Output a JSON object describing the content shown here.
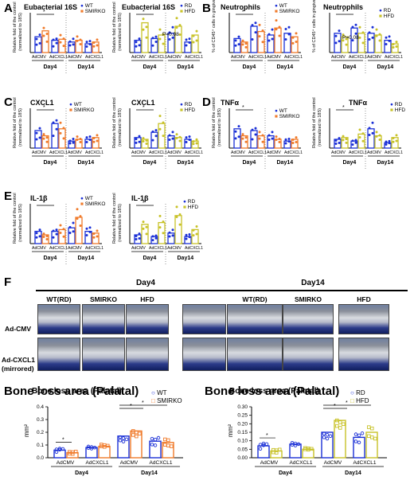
{
  "colors": {
    "wt": "#1a2fd6",
    "smirko": "#f07a2a",
    "rd": "#1a2fd6",
    "hfd": "#c8c228"
  },
  "labels": {
    "A": "A",
    "B": "B",
    "C": "C",
    "D": "D",
    "E": "E",
    "F": "F",
    "G": "Bone loss area (Palatal)",
    "H": "Bone loss area (Palatal)",
    "A_left": "Eubacterial 16S",
    "A_right": "Eubacterial 16S",
    "B_left": "Neutrophils",
    "B_right": "Neutrophils",
    "C_left": "CXCL1",
    "C_right": "CXCL1",
    "D_left": "TNFα",
    "D_right": "TNFα",
    "E_left": "IL-1β",
    "E_right": "IL-1β",
    "wt": "WT",
    "smirko": "SMIRKO",
    "rd": "RD",
    "hfd": "HFD",
    "ylabel_fold": "Relative fold of the control",
    "ylabel_fold2": "(normalized to 18S)",
    "ylabel_neut": "% of CD45⁺ cells in gingiva",
    "ylabel_bone": "mm²",
    "adcmv": "AdCMV",
    "adcxcl1": "AdCXCL1",
    "day4": "Day4",
    "day14": "Day14",
    "p008": "P=0.08"
  },
  "panelF": {
    "day4": "Day4",
    "day14": "Day14",
    "wtrd": "WT(RD)",
    "smirko": "SMIRKO",
    "hfd": "HFD",
    "wtrd2": "WT(RD)",
    "smirko2": "SMIRKO",
    "hfd2": "HFD",
    "row1": "Ad-CMV",
    "row2a": "Ad-CXCL1",
    "row2b": "(mirrored)"
  },
  "chart_data": [
    {
      "panel": "G",
      "type": "bar",
      "title": "Bone loss area (Palatal)",
      "ylabel": "mm²",
      "ylim": [
        0,
        0.4
      ],
      "yticks": [
        "0.0",
        "0.1",
        "0.2",
        "0.3",
        "0.4"
      ],
      "categories": [
        "AdCMV Day4",
        "AdCXCL1 Day4",
        "AdCMV Day14",
        "AdCXCL1 Day14"
      ],
      "series": [
        {
          "name": "WT",
          "values": [
            0.06,
            0.08,
            0.17,
            0.13
          ]
        },
        {
          "name": "SMIRKO",
          "values": [
            0.04,
            0.09,
            0.21,
            0.12
          ]
        }
      ]
    },
    {
      "panel": "H",
      "type": "bar",
      "title": "Bone loss area (Palatal)",
      "ylabel": "mm²",
      "ylim": [
        0,
        0.3
      ],
      "yticks": [
        "0.00",
        "0.05",
        "0.10",
        "0.15",
        "0.20",
        "0.25",
        "0.30"
      ],
      "categories": [
        "AdCMV Day4",
        "AdCXCL1 Day4",
        "AdCMV Day14",
        "AdCXCL1 Day14"
      ],
      "series": [
        {
          "name": "RD",
          "values": [
            0.07,
            0.08,
            0.15,
            0.12
          ]
        },
        {
          "name": "HFD",
          "values": [
            0.04,
            0.05,
            0.22,
            0.15
          ]
        }
      ]
    }
  ]
}
